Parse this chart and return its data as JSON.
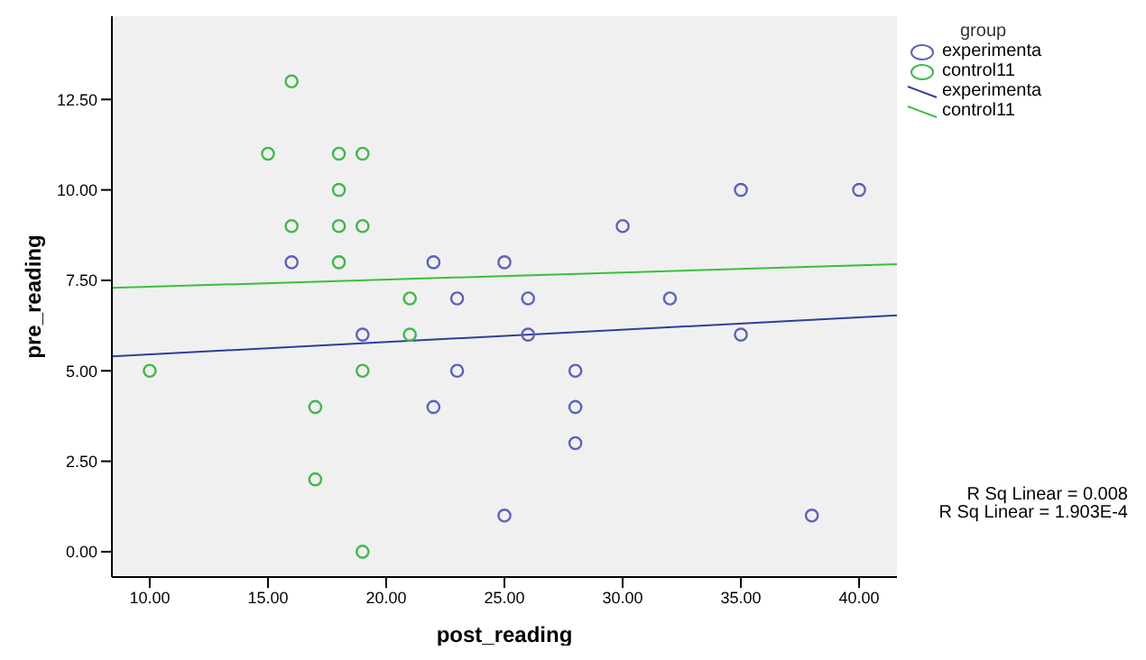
{
  "chart_data": {
    "type": "scatter",
    "xlabel": "post_reading",
    "ylabel": "pre_reading",
    "legend_title": "group",
    "legend": "right",
    "grid": false,
    "marker": "circle",
    "xlim": [
      8.4,
      41.6
    ],
    "ylim": [
      -0.7,
      14.8
    ],
    "xticks": [
      {
        "value": 10,
        "label": "10.00"
      },
      {
        "value": 15,
        "label": "15.00"
      },
      {
        "value": 20,
        "label": "20.00"
      },
      {
        "value": 25,
        "label": "25.00"
      },
      {
        "value": 30,
        "label": "30.00"
      },
      {
        "value": 35,
        "label": "35.00"
      },
      {
        "value": 40,
        "label": "40.00"
      }
    ],
    "yticks": [
      {
        "value": 0,
        "label": "0.00"
      },
      {
        "value": 2.5,
        "label": "2.50"
      },
      {
        "value": 5,
        "label": "5.00"
      },
      {
        "value": 7.5,
        "label": "7.50"
      },
      {
        "value": 10,
        "label": "10.00"
      },
      {
        "value": 12.5,
        "label": "12.50"
      }
    ],
    "series": [
      {
        "name": "experimenta",
        "color": "#5b62c0",
        "x": [
          16,
          22,
          25,
          19,
          23,
          26,
          26,
          32,
          30,
          35,
          40,
          35,
          23,
          28,
          22,
          28,
          28,
          25,
          38
        ],
        "values": [
          8,
          8,
          8,
          6,
          7,
          7,
          6,
          7,
          9,
          10,
          10,
          6,
          5,
          5,
          4,
          4,
          3,
          1,
          1
        ]
      },
      {
        "name": "control11",
        "color": "#40b84a",
        "x": [
          16,
          15,
          18,
          19,
          18,
          16,
          18,
          19,
          18,
          21,
          21,
          10,
          19,
          17,
          17,
          19
        ],
        "values": [
          13,
          11,
          11,
          11,
          10,
          9,
          9,
          9,
          8,
          7,
          6,
          5,
          5,
          4,
          2,
          0
        ]
      },
      {
        "name": "experimenta",
        "type": "line",
        "marker": "none",
        "color": "#2d3e9e",
        "x": [
          8.4,
          41.6
        ],
        "values": [
          5.4,
          6.53
        ]
      },
      {
        "name": "control11",
        "type": "line",
        "marker": "none",
        "color": "#3bbf3b",
        "x": [
          8.4,
          41.6
        ],
        "values": [
          7.29,
          7.95
        ]
      }
    ],
    "annotations": [
      "R Sq Linear = 0.008",
      "R Sq Linear = 1.903E-4"
    ]
  }
}
